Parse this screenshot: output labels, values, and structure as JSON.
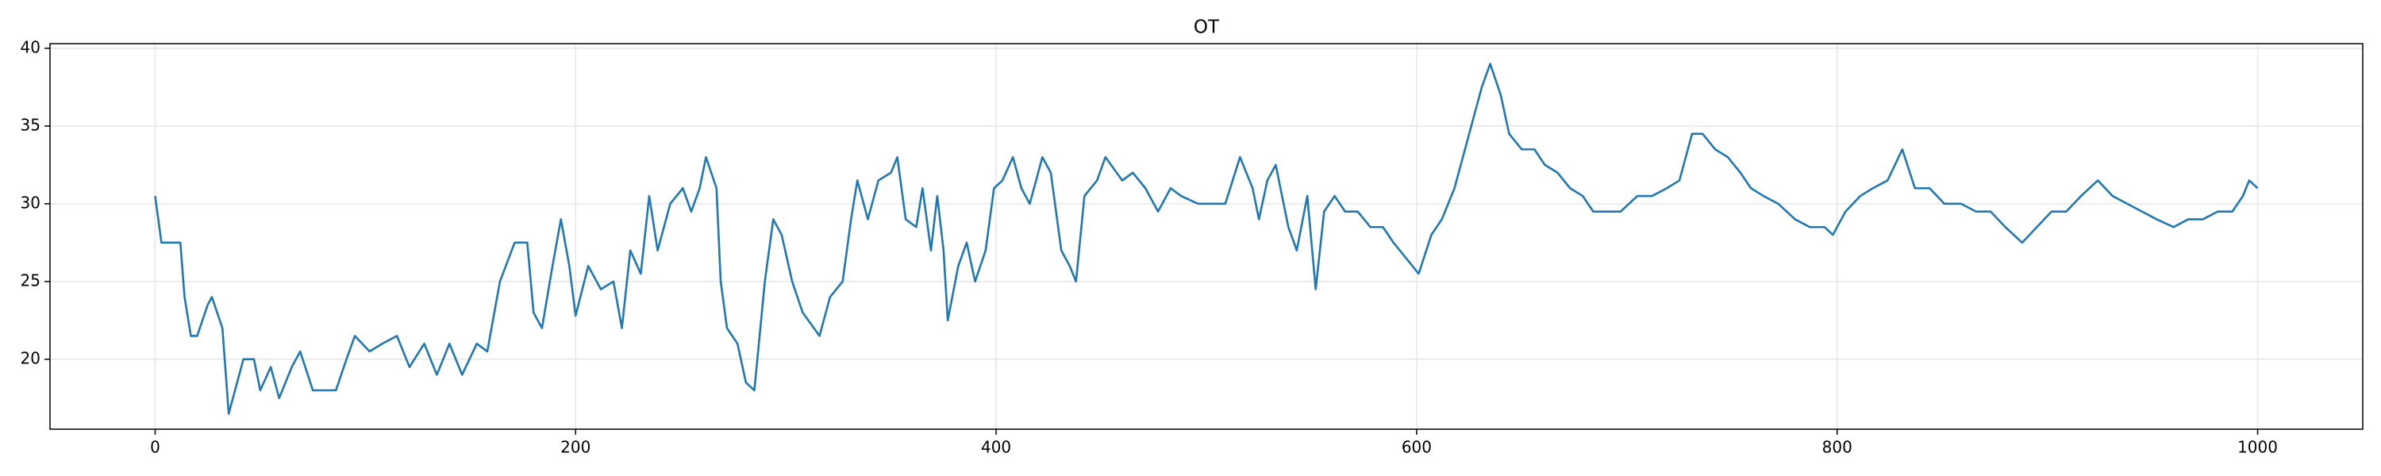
{
  "chart_data": {
    "type": "line",
    "title": "OT",
    "color": "#1f77b4",
    "grid": true,
    "xlim": [
      -50,
      1050
    ],
    "ylim": [
      15.5,
      40.3
    ],
    "xticks": [
      0,
      200,
      400,
      600,
      800,
      1000
    ],
    "yticks": [
      20,
      25,
      30,
      35,
      40
    ],
    "x": [
      0,
      3,
      12,
      14,
      17,
      20,
      25,
      27,
      32,
      35,
      42,
      47,
      50,
      55,
      59,
      65,
      69,
      75,
      81,
      86,
      91,
      95,
      102,
      108,
      115,
      121,
      128,
      134,
      140,
      146,
      153,
      158,
      164,
      171,
      177,
      180,
      184,
      189,
      193,
      197,
      200,
      206,
      212,
      218,
      222,
      226,
      231,
      235,
      239,
      245,
      251,
      255,
      259,
      262,
      267,
      269,
      272,
      277,
      281,
      285,
      290,
      294,
      298,
      303,
      308,
      316,
      321,
      327,
      331,
      334,
      339,
      344,
      350,
      353,
      357,
      362,
      365,
      369,
      372,
      375,
      377,
      382,
      386,
      390,
      395,
      399,
      403,
      408,
      412,
      416,
      422,
      426,
      431,
      435,
      438,
      442,
      448,
      452,
      460,
      465,
      471,
      477,
      483,
      488,
      496,
      503,
      509,
      516,
      522,
      525,
      529,
      533,
      539,
      543,
      548,
      552,
      556,
      561,
      566,
      572,
      578,
      584,
      589,
      595,
      601,
      607,
      612,
      618,
      622,
      627,
      631,
      635,
      640,
      644,
      650,
      656,
      661,
      667,
      673,
      679,
      684,
      690,
      697,
      705,
      712,
      719,
      725,
      731,
      736,
      742,
      748,
      754,
      759,
      765,
      772,
      780,
      787,
      794,
      798,
      804,
      811,
      817,
      824,
      831,
      837,
      844,
      851,
      859,
      866,
      873,
      880,
      888,
      895,
      902,
      909,
      916,
      924,
      931,
      938,
      945,
      952,
      960,
      967,
      974,
      981,
      988,
      993,
      996,
      1000
    ],
    "values": [
      30.5,
      27.5,
      27.5,
      24,
      21.5,
      21.5,
      23.5,
      24,
      22,
      16.5,
      20,
      20,
      18,
      19.5,
      17.5,
      19.5,
      20.5,
      18,
      18,
      18,
      20,
      21.5,
      20.5,
      21,
      21.5,
      19.5,
      21,
      19,
      21,
      19,
      21,
      20.5,
      25,
      27.5,
      27.5,
      23,
      22,
      26,
      29,
      26,
      22.8,
      26,
      24.5,
      25,
      22,
      27,
      25.5,
      30.5,
      27,
      30,
      31,
      29.5,
      31,
      33,
      31,
      25,
      22,
      21,
      18.5,
      18,
      25,
      29,
      28,
      25,
      23,
      21.5,
      24,
      25,
      29,
      31.5,
      29,
      31.5,
      32,
      33,
      29,
      28.5,
      31,
      27,
      30.5,
      27,
      22.5,
      26,
      27.5,
      25,
      27,
      31,
      31.5,
      33,
      31,
      30,
      33,
      32,
      27,
      26,
      25,
      30.5,
      31.5,
      33,
      31.5,
      32,
      31,
      29.5,
      31,
      30.5,
      30,
      30,
      30,
      33,
      31,
      29,
      31.5,
      32.5,
      28.5,
      27,
      30.5,
      24.5,
      29.5,
      30.5,
      29.5,
      29.5,
      28.5,
      28.5,
      27.5,
      26.5,
      25.5,
      28,
      29,
      31,
      33,
      35.5,
      37.5,
      39,
      37,
      34.5,
      33.5,
      33.5,
      32.5,
      32,
      31,
      30.5,
      29.5,
      29.5,
      29.5,
      30.5,
      30.5,
      31,
      31.5,
      34.5,
      34.5,
      33.5,
      33,
      32,
      31,
      30.5,
      30,
      29,
      28.5,
      28.5,
      28,
      29.5,
      30.5,
      31,
      31.5,
      33.5,
      31,
      31,
      30,
      30,
      29.5,
      29.5,
      28.5,
      27.5,
      28.5,
      29.5,
      29.5,
      30.5,
      31.5,
      30.5,
      30,
      29.5,
      29,
      28.5,
      29,
      29,
      29.5,
      29.5,
      30.5,
      31.5,
      31
    ]
  }
}
